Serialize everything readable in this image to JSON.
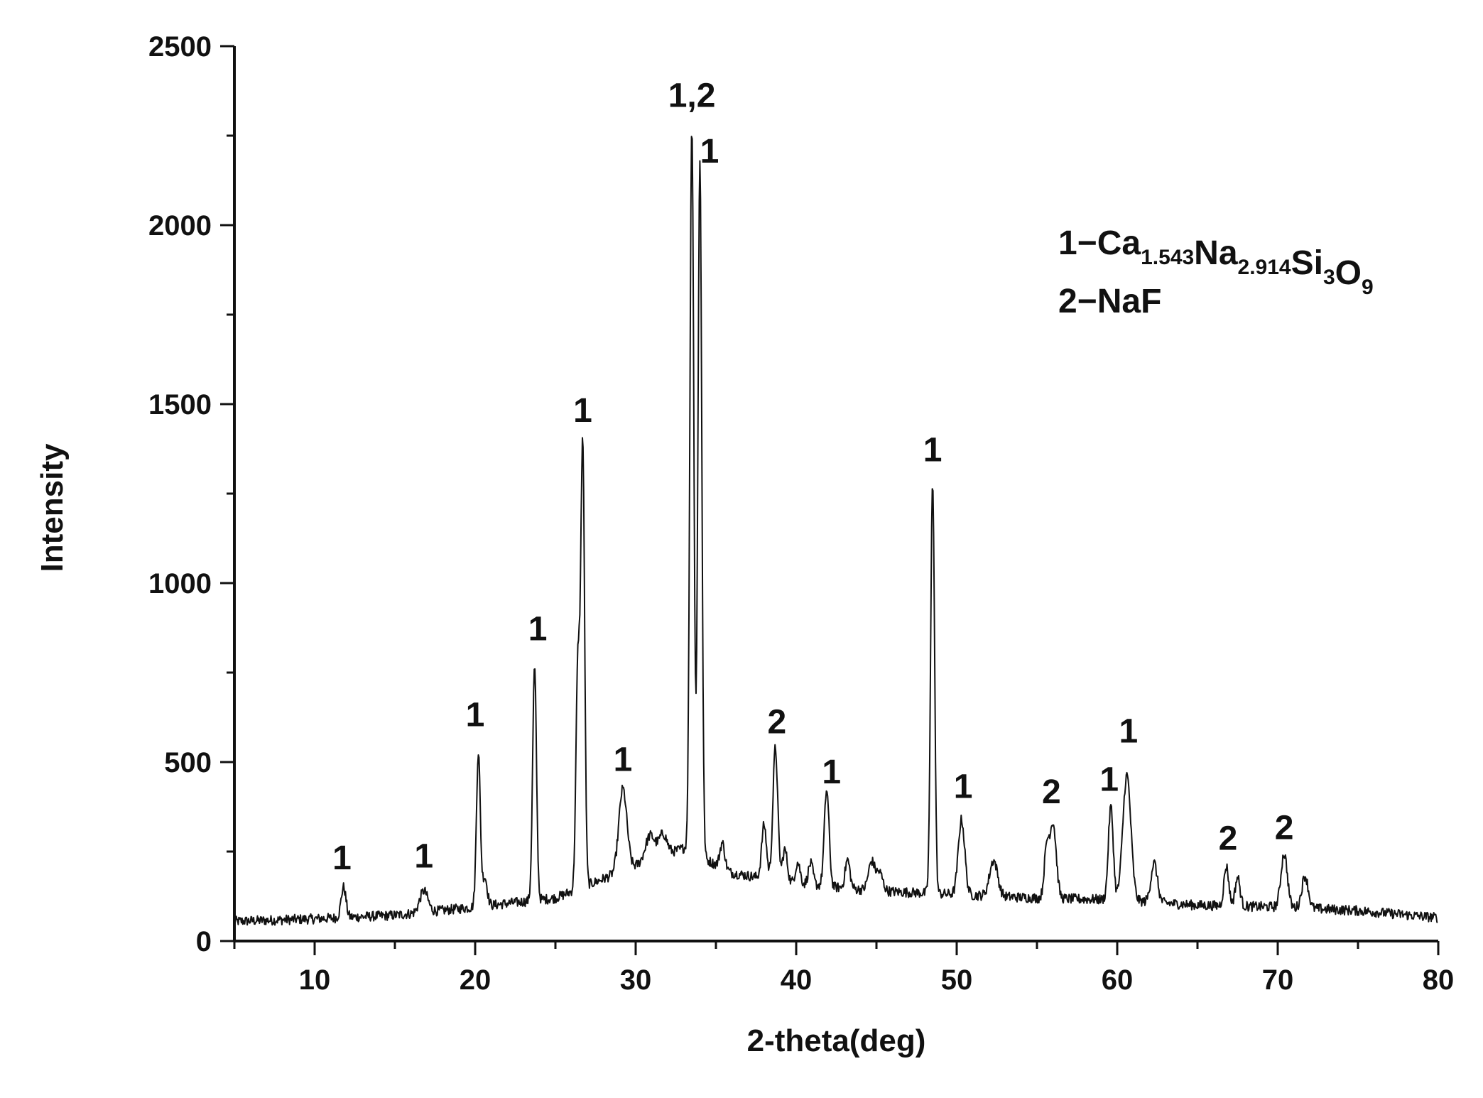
{
  "chart_data": {
    "type": "line",
    "title": "",
    "xlabel": "2-theta(deg)",
    "ylabel": "Intensity",
    "xlim": [
      5,
      80
    ],
    "ylim": [
      0,
      2500
    ],
    "x_ticks": [
      10,
      20,
      30,
      40,
      50,
      60,
      70,
      80
    ],
    "y_ticks": [
      0,
      500,
      1000,
      1500,
      2000,
      2500
    ],
    "grid": false,
    "line_color": "#111111",
    "legend": {
      "placement": "top-right",
      "entries": [
        {
          "prefix": "1−",
          "parts": [
            {
              "text": "Ca",
              "sub": "1.543"
            },
            {
              "text": "Na",
              "sub": "2.914"
            },
            {
              "text": "Si",
              "sub": "3"
            },
            {
              "text": "O",
              "sub": "9"
            }
          ]
        },
        {
          "prefix": "2−",
          "parts": [
            {
              "text": "NaF",
              "sub": ""
            }
          ]
        }
      ]
    },
    "background_curve": {
      "x": [
        5,
        10,
        15,
        20,
        25,
        30,
        33,
        36,
        40,
        45,
        50,
        55,
        60,
        65,
        70,
        75,
        80
      ],
      "y": [
        55,
        62,
        72,
        95,
        120,
        210,
        260,
        190,
        160,
        140,
        130,
        120,
        115,
        100,
        95,
        85,
        65
      ]
    },
    "peaks": [
      {
        "x": 11.8,
        "height": 85,
        "width": 0.15
      },
      {
        "x": 16.8,
        "height": 60,
        "width": 0.25
      },
      {
        "x": 20.2,
        "height": 430,
        "width": 0.12
      },
      {
        "x": 20.6,
        "height": 80,
        "width": 0.15
      },
      {
        "x": 23.7,
        "height": 650,
        "width": 0.12
      },
      {
        "x": 26.4,
        "height": 620,
        "width": 0.12
      },
      {
        "x": 26.7,
        "height": 1230,
        "width": 0.12
      },
      {
        "x": 29.2,
        "height": 230,
        "width": 0.25
      },
      {
        "x": 30.9,
        "height": 70,
        "width": 0.3
      },
      {
        "x": 31.7,
        "height": 60,
        "width": 0.25
      },
      {
        "x": 33.5,
        "height": 2030,
        "width": 0.12
      },
      {
        "x": 34.0,
        "height": 1940,
        "width": 0.12
      },
      {
        "x": 35.4,
        "height": 70,
        "width": 0.15
      },
      {
        "x": 38.0,
        "height": 150,
        "width": 0.15
      },
      {
        "x": 38.7,
        "height": 370,
        "width": 0.15
      },
      {
        "x": 39.3,
        "height": 90,
        "width": 0.15
      },
      {
        "x": 40.1,
        "height": 60,
        "width": 0.15
      },
      {
        "x": 40.9,
        "height": 60,
        "width": 0.15
      },
      {
        "x": 41.9,
        "height": 270,
        "width": 0.15
      },
      {
        "x": 43.2,
        "height": 80,
        "width": 0.15
      },
      {
        "x": 44.7,
        "height": 80,
        "width": 0.2
      },
      {
        "x": 45.2,
        "height": 50,
        "width": 0.2
      },
      {
        "x": 48.5,
        "height": 1150,
        "width": 0.12
      },
      {
        "x": 50.3,
        "height": 210,
        "width": 0.2
      },
      {
        "x": 52.3,
        "height": 100,
        "width": 0.25
      },
      {
        "x": 55.6,
        "height": 130,
        "width": 0.15
      },
      {
        "x": 56.0,
        "height": 210,
        "width": 0.2
      },
      {
        "x": 59.6,
        "height": 260,
        "width": 0.15
      },
      {
        "x": 60.6,
        "height": 350,
        "width": 0.25
      },
      {
        "x": 62.3,
        "height": 110,
        "width": 0.2
      },
      {
        "x": 66.8,
        "height": 110,
        "width": 0.15
      },
      {
        "x": 67.5,
        "height": 80,
        "width": 0.15
      },
      {
        "x": 70.4,
        "height": 150,
        "width": 0.2
      },
      {
        "x": 71.7,
        "height": 90,
        "width": 0.2
      }
    ],
    "peak_labels": [
      {
        "text": "1",
        "x": 11.7,
        "y": 200
      },
      {
        "text": "1",
        "x": 16.8,
        "y": 205
      },
      {
        "text": "1",
        "x": 20.0,
        "y": 600
      },
      {
        "text": "1",
        "x": 23.9,
        "y": 840
      },
      {
        "text": "1",
        "x": 26.7,
        "y": 1450
      },
      {
        "text": "1",
        "x": 29.2,
        "y": 475
      },
      {
        "text": "1,2",
        "x": 33.5,
        "y": 2330
      },
      {
        "text": "1",
        "x": 34.6,
        "y": 2175
      },
      {
        "text": "2",
        "x": 38.8,
        "y": 580
      },
      {
        "text": "1",
        "x": 42.2,
        "y": 440
      },
      {
        "text": "1",
        "x": 48.5,
        "y": 1340
      },
      {
        "text": "1",
        "x": 50.4,
        "y": 400
      },
      {
        "text": "2",
        "x": 55.9,
        "y": 385
      },
      {
        "text": "1",
        "x": 59.5,
        "y": 420
      },
      {
        "text": "1",
        "x": 60.7,
        "y": 555
      },
      {
        "text": "2",
        "x": 66.9,
        "y": 255
      },
      {
        "text": "2",
        "x": 70.4,
        "y": 285
      }
    ]
  }
}
